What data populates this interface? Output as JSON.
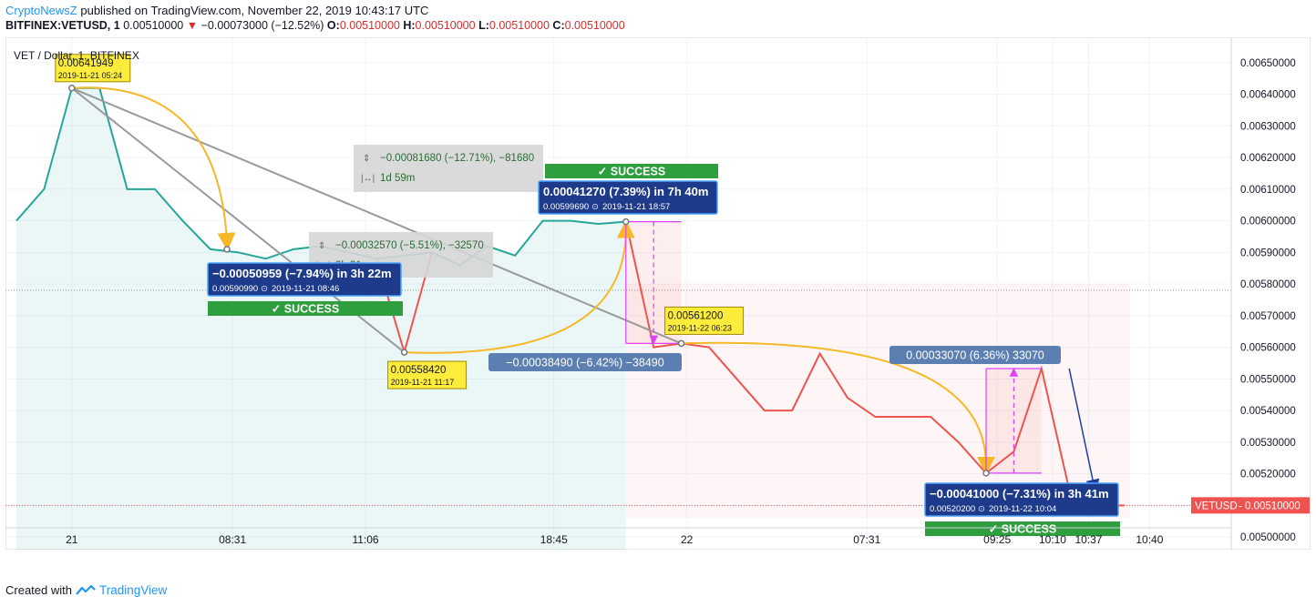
{
  "header": {
    "brand": "CryptoNewsZ",
    "published_text": " published on TradingView.com, November 22, 2019 10:43:17 UTC",
    "symbol": "BITFINEX:VETUSD, 1",
    "last": "0.00510000",
    "change": "−0.00073000 (−12.52%)",
    "o_label": "O:",
    "o_value": "0.00510000",
    "h_label": "H:",
    "h_value": "0.00510000",
    "l_label": "L:",
    "l_value": "0.00510000",
    "c_label": "C:",
    "c_value": "0.00510000"
  },
  "legend_title": "VET / Dollar, 1, BITFINEX",
  "footer": {
    "created_with": "Created with",
    "brand": "TradingView"
  },
  "colors": {
    "up": "#26a69a",
    "down": "#ef5350",
    "curve": "#f6b826",
    "measure_pink": "#e040fb",
    "projection": "#1e3d9e"
  },
  "chart_data": {
    "type": "line",
    "title": "VET / Dollar, 1, BITFINEX",
    "x_ticks": [
      "21",
      "08:31",
      "11:06",
      "18:45",
      "22",
      "07:31",
      "09:25",
      "10:10",
      "10:37",
      "10:40"
    ],
    "y_ticks": [
      "0.00650000",
      "0.00640000",
      "0.00630000",
      "0.00620000",
      "0.00610000",
      "0.00600000",
      "0.00590000",
      "0.00580000",
      "0.00570000",
      "0.00560000",
      "0.00550000",
      "0.00540000",
      "0.00530000",
      "0.00520000",
      "0.00510000",
      "0.00500000"
    ],
    "ylim": [
      0.00496,
      0.00658
    ],
    "grid": true,
    "series": [
      {
        "segment": "up",
        "points": [
          [
            0,
            0.006
          ],
          [
            1,
            0.0061
          ],
          [
            2,
            0.0064195
          ],
          [
            3,
            0.0064195
          ],
          [
            4,
            0.0061
          ],
          [
            5,
            0.0061
          ],
          [
            6,
            0.006
          ],
          [
            7,
            0.0059099
          ],
          [
            8,
            0.0059
          ],
          [
            9,
            0.00588
          ],
          [
            10,
            0.00591
          ],
          [
            11,
            0.00592
          ],
          [
            12,
            0.0059
          ],
          [
            13,
            0.00588
          ],
          [
            15,
            0.0059
          ],
          [
            16,
            0.00586
          ],
          [
            17,
            0.00592
          ],
          [
            18,
            0.00589
          ],
          [
            19,
            0.006
          ],
          [
            20,
            0.006
          ],
          [
            21,
            0.00599
          ],
          [
            22,
            0.0059969
          ]
        ]
      },
      {
        "segment": "down",
        "points": [
          [
            13,
            0.00588
          ],
          [
            14,
            0.0055842
          ],
          [
            15,
            0.0059
          ],
          [
            22,
            0.0059969
          ],
          [
            23,
            0.0056
          ],
          [
            24,
            0.005612
          ],
          [
            25,
            0.0056
          ],
          [
            26,
            0.0055
          ],
          [
            27,
            0.0054
          ],
          [
            28,
            0.0054
          ],
          [
            29,
            0.00558
          ],
          [
            30,
            0.00544
          ],
          [
            31,
            0.00538
          ],
          [
            32,
            0.00538
          ],
          [
            33,
            0.00538
          ],
          [
            34,
            0.0053
          ],
          [
            35,
            0.005202
          ],
          [
            36,
            0.00527
          ],
          [
            37,
            0.0055327
          ],
          [
            38,
            0.00515
          ],
          [
            39,
            0.0051
          ],
          [
            40,
            0.0051
          ]
        ]
      }
    ],
    "current_price": {
      "label": "VETUSD",
      "value": "0.00510000"
    },
    "annotations": {
      "point_labels": [
        {
          "price": "0.00641949",
          "time": "2019-11-21 05:24"
        },
        {
          "price": "0.00558420",
          "time": "2019-11-21 11:17"
        },
        {
          "price": "0.00561200",
          "time": "2019-11-22 06:23"
        }
      ],
      "measures": [
        {
          "change": "−0.00081680 (−12.71%), −81680",
          "duration": "1d 59m"
        },
        {
          "change": "−0.00032570 (−5.51%), −32570",
          "duration": "2h 31m"
        }
      ],
      "boxes": [
        {
          "main": "−0.00050959 (−7.94%) in 3h 22m",
          "sub_price": "0.00590990",
          "sub_time": "2019-11-21  08:46"
        },
        {
          "main": "0.00041270 (7.39%) in 7h 40m",
          "sub_price": "0.00599690",
          "sub_time": "2019-11-21  18:57"
        },
        {
          "main": "−0.00041000 (−7.31%) in 3h 41m",
          "sub_price": "0.00520200",
          "sub_time": "2019-11-22  10:04"
        }
      ],
      "success_label": "✓  SUCCESS",
      "pill_labels": [
        "−0.00038490 (−6.42%) −38490",
        "0.00033070 (6.36%) 33070"
      ]
    }
  }
}
